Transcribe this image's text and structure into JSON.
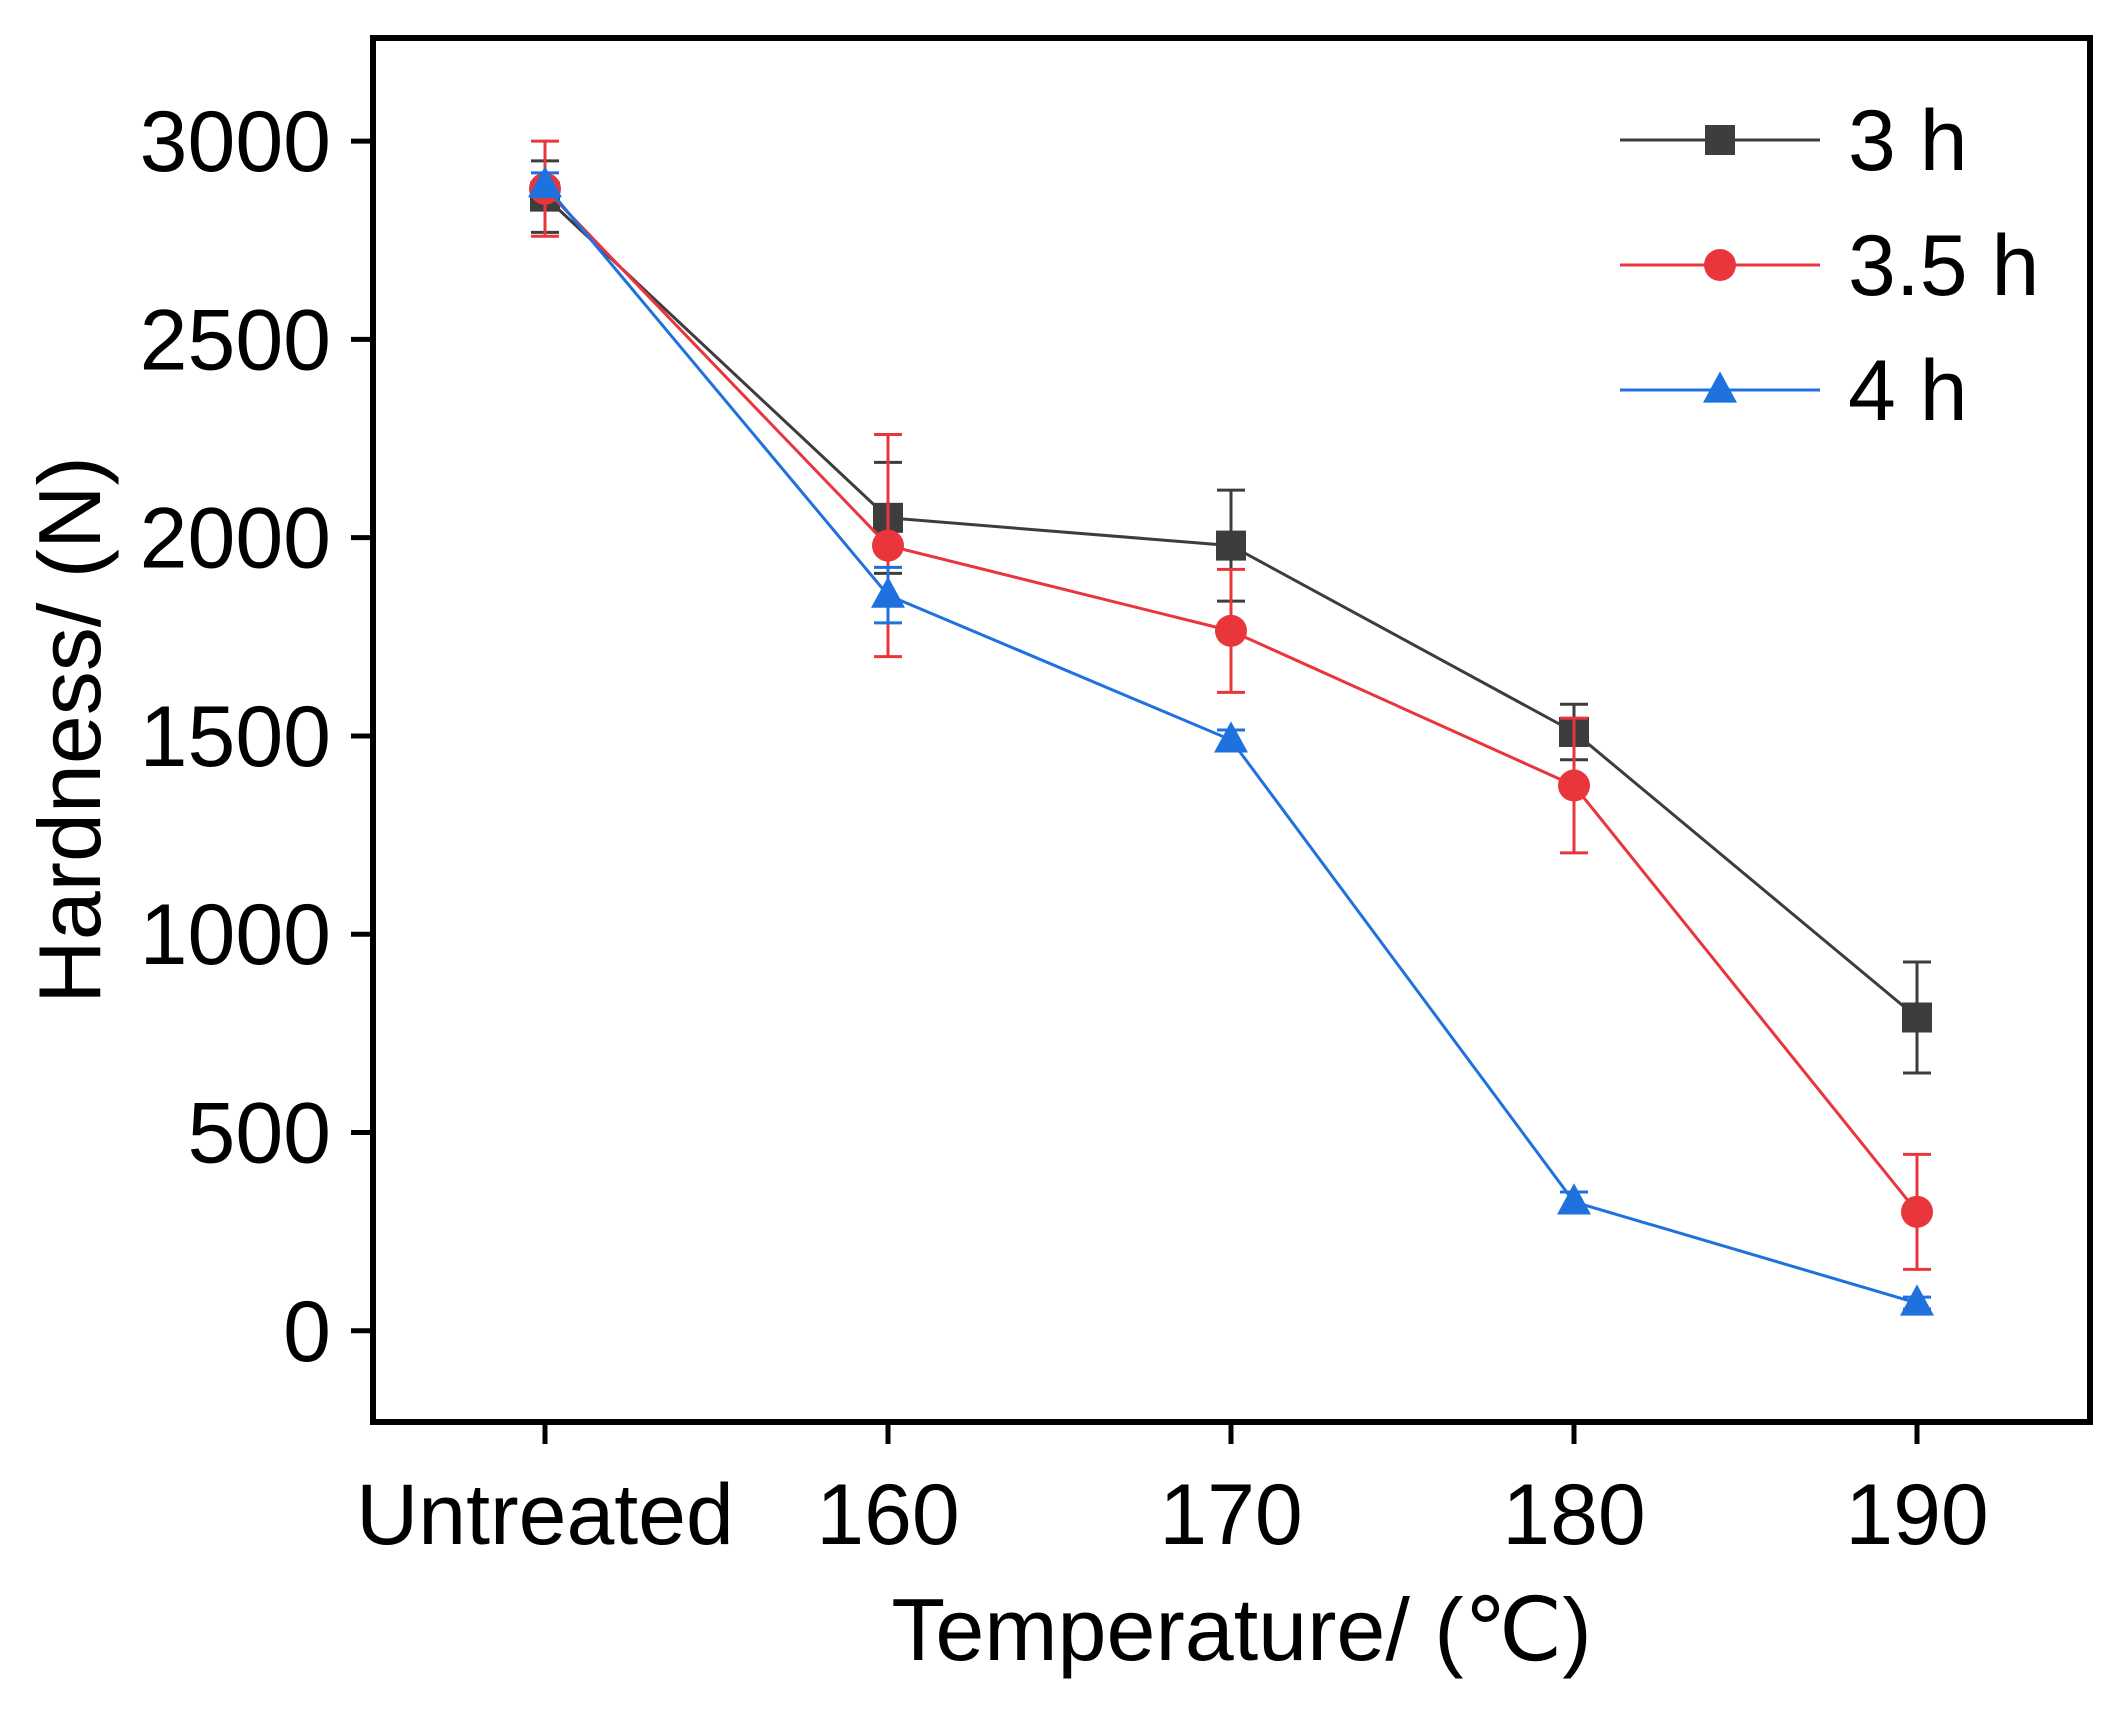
{
  "chart_data": {
    "type": "line",
    "title": "",
    "xlabel": "Temperature/ (℃)",
    "ylabel": "Hardness/ (N)",
    "categories": [
      "Untreated",
      "160",
      "170",
      "180",
      "190"
    ],
    "ylim": [
      -230,
      3260
    ],
    "yticks": [
      0,
      500,
      1000,
      1500,
      2000,
      2500,
      3000
    ],
    "ytick_labels": [
      "0",
      "500",
      "1000",
      "1500",
      "2000",
      "2500",
      "3000"
    ],
    "grid": false,
    "legend_position": "top-right",
    "series": [
      {
        "name": "3 h",
        "color": "#3d3d3d",
        "marker": "square",
        "values": [
          2860,
          2050,
          1980,
          1510,
          790
        ],
        "errors": [
          90,
          140,
          140,
          70,
          140
        ]
      },
      {
        "name": "3.5 h",
        "color": "#e8363c",
        "marker": "circle",
        "values": [
          2880,
          1980,
          1765,
          1375,
          300
        ],
        "errors": [
          120,
          280,
          155,
          170,
          145
        ]
      },
      {
        "name": "4 h",
        "color": "#1f72de",
        "marker": "triangle",
        "values": [
          2890,
          1855,
          1490,
          325,
          70
        ],
        "errors": [
          30,
          70,
          25,
          25,
          15
        ]
      }
    ]
  }
}
